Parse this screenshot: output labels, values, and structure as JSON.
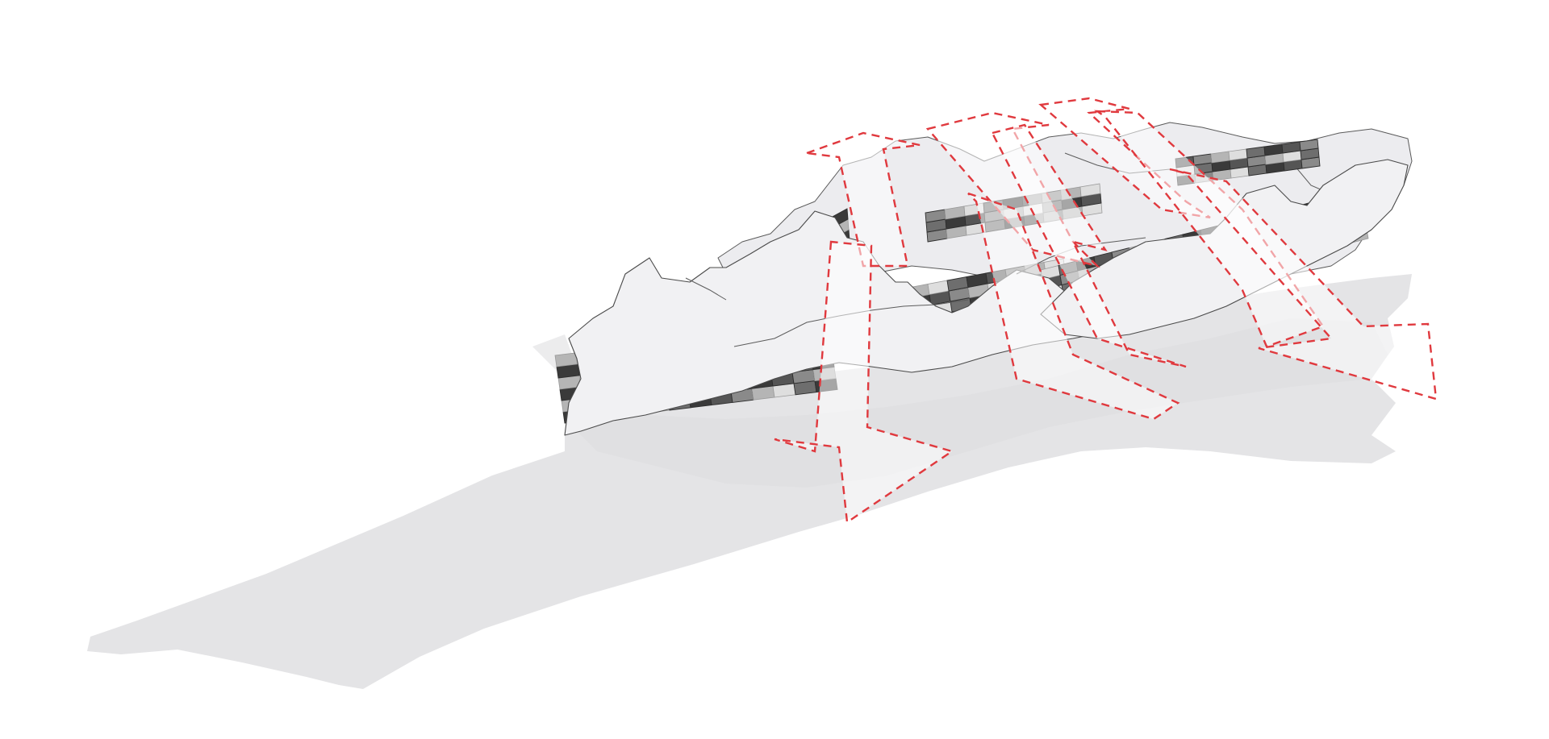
{
  "diagram": {
    "subject": "parametric-canopy-over-terrain",
    "colors": {
      "ground": "#e4e4e6",
      "roof": "#f1f1f3",
      "panel_dark": "#3a3a3a",
      "panel_mid": "#8a8a8a",
      "panel_light": "#dedede",
      "arrow": "#e0393e"
    },
    "arrow_count": 8,
    "arrow_style": "dashed-outline",
    "panel_rows": 6
  }
}
